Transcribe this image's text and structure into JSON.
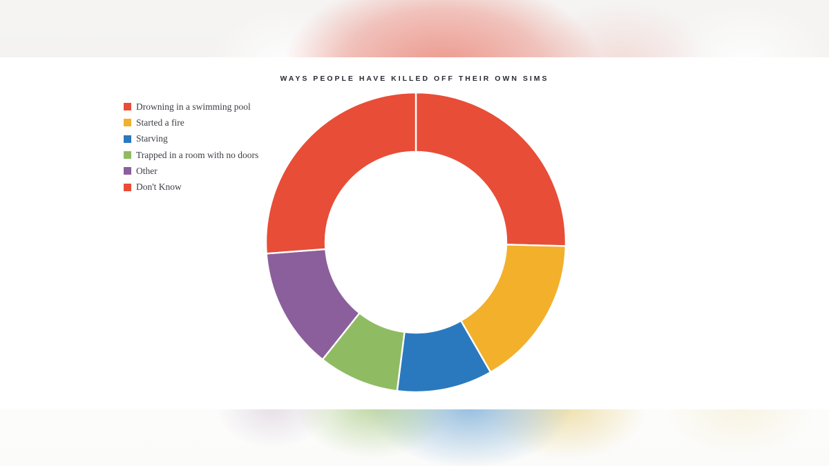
{
  "chart_data": {
    "type": "pie",
    "subtype": "donut",
    "title": "WAYS PEOPLE HAVE KILLED OFF THEIR OWN SIMS",
    "categories": [
      "Drowning in a swimming pool",
      "Started a fire",
      "Starving",
      "Trapped in a room with no doors",
      "Other",
      "Don't Know"
    ],
    "values": [
      25.4,
      16.3,
      10.3,
      8.7,
      13.1,
      26.2
    ],
    "unit": "percent_of_circle_estimated",
    "colors": [
      "#E84D37",
      "#F2B02B",
      "#2A79BE",
      "#8FBB62",
      "#8B5F9C",
      "#E84D37"
    ],
    "start_angle_deg": 0,
    "direction": "clockwise",
    "inner_radius_ratio": 0.6,
    "slice_border_color": "#FFFFFF",
    "legend_position": "left",
    "data_labels_shown": false
  },
  "backdrop": {
    "top_glow_color": "#E84E3A",
    "bottom_glow_colors": [
      "#96769E",
      "#8FBB62",
      "#5294CB",
      "#E2C45F"
    ],
    "band_base_color": "#F5F4F3"
  }
}
